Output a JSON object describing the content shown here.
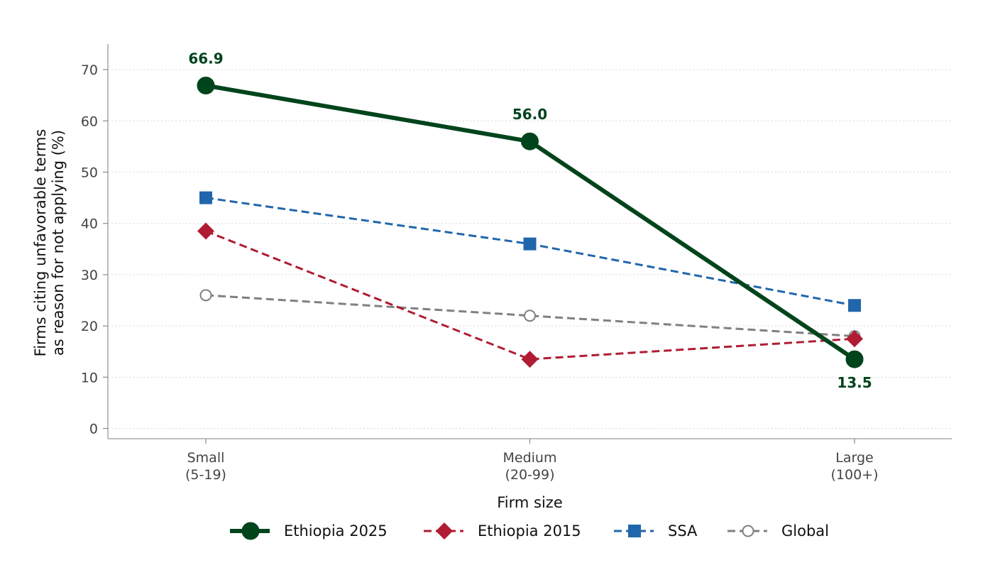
{
  "chart_data": {
    "type": "line",
    "title": "",
    "xlabel": "Firm size",
    "ylabel_lines": [
      "Firms citing unfavorable terms",
      "as reason for not applying (%)"
    ],
    "categories": [
      {
        "line1": "Small",
        "line2": "(5-19)"
      },
      {
        "line1": "Medium",
        "line2": "(20-99)"
      },
      {
        "line1": "Large",
        "line2": "(100+)"
      }
    ],
    "ylim": [
      -2,
      75
    ],
    "yticks": [
      0,
      10,
      20,
      30,
      40,
      50,
      60,
      70
    ],
    "grid": "horizontal dotted",
    "legend_position": "bottom-center",
    "series": [
      {
        "name": "Global",
        "values": [
          26,
          22,
          18
        ],
        "color": "#808080",
        "marker": "open-circle",
        "linestyle": "dashed",
        "emphasis": false
      },
      {
        "name": "Ethiopia 2015",
        "values": [
          38.5,
          13.5,
          17.5
        ],
        "color": "#b01c33",
        "marker": "diamond",
        "linestyle": "dashed",
        "emphasis": false
      },
      {
        "name": "SSA",
        "values": [
          45,
          36,
          24
        ],
        "color": "#2166ac",
        "marker": "square",
        "linestyle": "dashed",
        "emphasis": false
      },
      {
        "name": "Ethiopia 2025",
        "values": [
          66.9,
          56.0,
          13.5
        ],
        "color": "#00441b",
        "marker": "filled-circle",
        "linestyle": "solid",
        "emphasis": true,
        "data_labels": [
          "66.9",
          "56.0",
          "13.5"
        ],
        "label_placement": [
          "above",
          "above",
          "below"
        ]
      }
    ],
    "legend_order": [
      "Ethiopia 2025",
      "Ethiopia 2015",
      "SSA",
      "Global"
    ]
  }
}
